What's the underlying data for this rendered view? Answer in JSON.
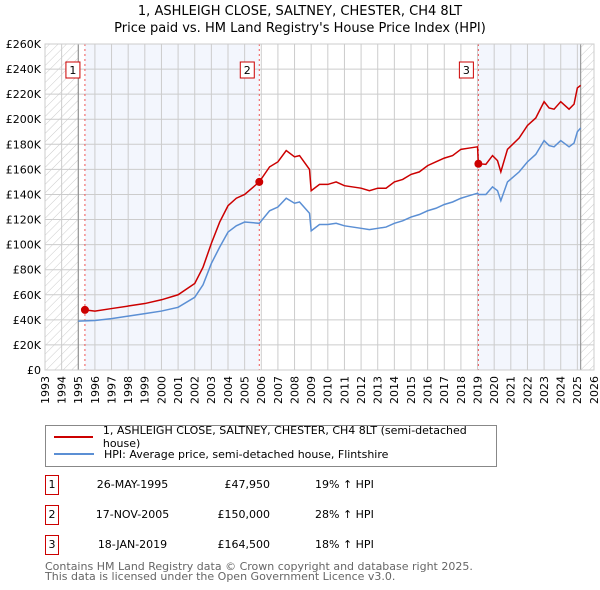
{
  "chart_data": {
    "type": "line",
    "title": "1, ASHLEIGH CLOSE, SALTNEY, CHESTER, CH4 8LT",
    "subtitle": "Price paid vs. HM Land Registry's House Price Index (HPI)",
    "xlim": [
      1993,
      2026
    ],
    "ylim": [
      0,
      260000
    ],
    "x_ticks": [
      "1993",
      "1994",
      "1995",
      "1996",
      "1997",
      "1998",
      "1999",
      "2000",
      "2001",
      "2002",
      "2003",
      "2004",
      "2005",
      "2006",
      "2007",
      "2008",
      "2009",
      "2010",
      "2011",
      "2012",
      "2013",
      "2014",
      "2015",
      "2016",
      "2017",
      "2018",
      "2019",
      "2020",
      "2021",
      "2022",
      "2023",
      "2024",
      "2025",
      "2026"
    ],
    "y_ticks": [
      "£0",
      "£20K",
      "£40K",
      "£60K",
      "£80K",
      "£100K",
      "£120K",
      "£140K",
      "£160K",
      "£180K",
      "£200K",
      "£220K",
      "£240K",
      "£260K"
    ],
    "data_range": [
      1995.0,
      2025.2
    ],
    "series": [
      {
        "name": "1, ASHLEIGH CLOSE, SALTNEY, CHESTER, CH4 8LT (semi-detached house)",
        "color": "#cc0000",
        "x": [
          1995.4,
          1996,
          1997,
          1998,
          1999,
          2000,
          2001,
          2002,
          2002.5,
          2003,
          2003.5,
          2004,
          2004.5,
          2005,
          2005.88,
          2006.5,
          2007,
          2007.5,
          2008,
          2008.3,
          2008.9,
          2009.0,
          2009.5,
          2010,
          2010.5,
          2011,
          2011.5,
          2012,
          2012.5,
          2013,
          2013.5,
          2014,
          2014.5,
          2015,
          2015.5,
          2016,
          2016.5,
          2017,
          2017.5,
          2018,
          2018.5,
          2019.0,
          2019.05,
          2019.5,
          2019.9,
          2020.2,
          2020.4,
          2020.8,
          2021.5,
          2022,
          2022.5,
          2023,
          2023.3,
          2023.6,
          2024,
          2024.5,
          2024.8,
          2025,
          2025.2
        ],
        "values": [
          47950,
          47000,
          49000,
          51000,
          53000,
          56000,
          60000,
          69000,
          82000,
          101000,
          118000,
          131000,
          137000,
          140000,
          150000,
          162000,
          166000,
          175000,
          170000,
          171000,
          160000,
          143000,
          148000,
          148000,
          150000,
          147000,
          146000,
          145000,
          143000,
          145000,
          145000,
          150000,
          152000,
          156000,
          158000,
          163000,
          166000,
          169000,
          171000,
          176000,
          177000,
          178000,
          164500,
          164000,
          171000,
          167000,
          158000,
          176000,
          185000,
          195000,
          201000,
          214000,
          209000,
          208000,
          214000,
          208000,
          212000,
          225000,
          227000
        ]
      },
      {
        "name": "HPI: Average price, semi-detached house, Flintshire",
        "color": "#5b8fd4",
        "x": [
          1995.0,
          1996,
          1997,
          1998,
          1999,
          2000,
          2001,
          2002,
          2002.5,
          2003,
          2003.5,
          2004,
          2004.5,
          2005,
          2005.88,
          2006.5,
          2007,
          2007.5,
          2008,
          2008.3,
          2008.9,
          2009.0,
          2009.5,
          2010,
          2010.5,
          2011,
          2011.5,
          2012,
          2012.5,
          2013,
          2013.5,
          2014,
          2014.5,
          2015,
          2015.5,
          2016,
          2016.5,
          2017,
          2017.5,
          2018,
          2018.5,
          2019.0,
          2019.05,
          2019.5,
          2019.9,
          2020.2,
          2020.4,
          2020.8,
          2021.5,
          2022,
          2022.5,
          2023,
          2023.3,
          2023.6,
          2024,
          2024.5,
          2024.8,
          2025,
          2025.2
        ],
        "values": [
          39000,
          39500,
          41000,
          43000,
          45000,
          47000,
          50000,
          58000,
          68000,
          85000,
          98000,
          110000,
          115000,
          118000,
          117000,
          127000,
          130000,
          137000,
          133000,
          134000,
          125000,
          111000,
          116000,
          116000,
          117000,
          115000,
          114000,
          113000,
          112000,
          113000,
          114000,
          117000,
          119000,
          122000,
          124000,
          127000,
          129000,
          132000,
          134000,
          137000,
          139000,
          141000,
          140000,
          140000,
          146000,
          143000,
          135000,
          150000,
          158000,
          166000,
          172000,
          183000,
          179000,
          178000,
          183000,
          178000,
          181000,
          190000,
          193000
        ]
      }
    ],
    "sales": [
      {
        "label": "1",
        "x": 1995.4,
        "value": 47950,
        "date": "26-MAY-1995",
        "price": "£47,950",
        "hpi": "19% ↑ HPI"
      },
      {
        "label": "2",
        "x": 2005.88,
        "value": 150000,
        "date": "17-NOV-2005",
        "price": "£150,000",
        "hpi": "28% ↑ HPI"
      },
      {
        "label": "3",
        "x": 2019.05,
        "value": 164500,
        "date": "18-JAN-2019",
        "price": "£164,500",
        "hpi": "18% ↑ HPI"
      }
    ]
  },
  "footer": [
    "Contains HM Land Registry data © Crown copyright and database right 2025.",
    "This data is licensed under the Open Government Licence v3.0."
  ]
}
